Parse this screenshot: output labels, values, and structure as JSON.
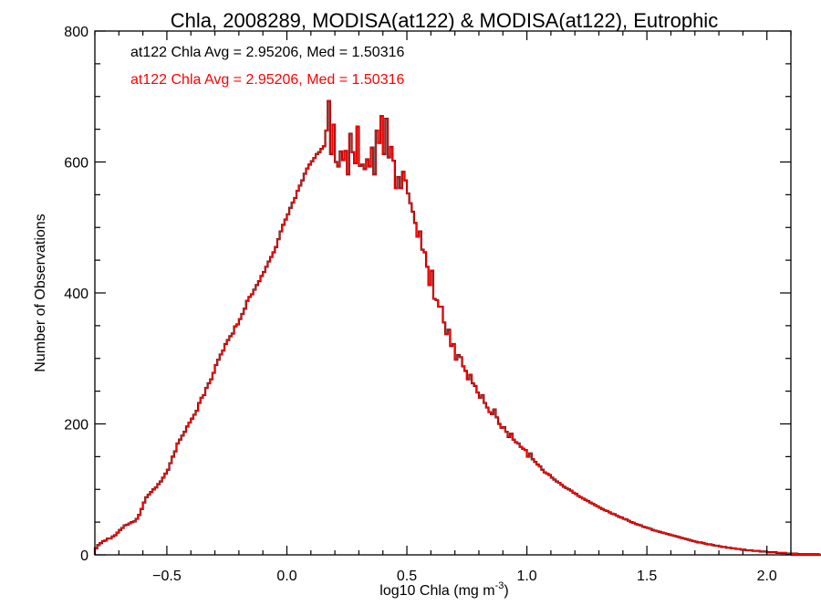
{
  "chart_data": {
    "type": "histogram",
    "title": "Chla, 2008289, MODISA(at122) & MODISA(at122), Eutrophic",
    "xlabel_main": "log10 Chla (mg m",
    "xlabel_sup": "-3",
    "xlabel_end": ")",
    "ylabel": "Number of Observations",
    "xlim": [
      -0.8,
      2.1
    ],
    "ylim": [
      0,
      800
    ],
    "x_ticks": [
      -0.5,
      0.0,
      0.5,
      1.0,
      1.5,
      2.0
    ],
    "x_tick_labels": [
      "−0.5",
      "0.0",
      "0.5",
      "1.0",
      "1.5",
      "2.0"
    ],
    "y_ticks": [
      0,
      200,
      400,
      600,
      800
    ],
    "y_tick_labels": [
      "0",
      "200",
      "400",
      "600",
      "800"
    ],
    "x_minor_step": 0.1,
    "y_minor_step": 50,
    "bin_width": 0.01,
    "annotations": [
      {
        "text": "at122 Chla Avg = 2.95206, Med = 1.50316",
        "color": "#000000"
      },
      {
        "text": "at122 Chla Avg = 2.95206, Med = 1.50316",
        "color": "#ff0000"
      }
    ],
    "series": [
      {
        "color": "#000000",
        "width": 2.2
      },
      {
        "color": "#ff0000",
        "width": 1.6
      }
    ],
    "x_start": -0.8,
    "values": [
      10,
      15,
      18,
      21,
      22,
      25,
      25,
      28,
      30,
      34,
      38,
      41,
      45,
      46,
      48,
      50,
      51,
      55,
      61,
      70,
      80,
      88,
      92,
      96,
      100,
      103,
      108,
      112,
      118,
      124,
      130,
      140,
      150,
      158,
      170,
      176,
      182,
      188,
      196,
      202,
      208,
      214,
      220,
      232,
      240,
      244,
      255,
      262,
      268,
      278,
      290,
      298,
      306,
      312,
      322,
      328,
      334,
      338,
      349,
      352,
      360,
      368,
      376,
      388,
      394,
      398,
      405,
      412,
      418,
      426,
      432,
      440,
      448,
      455,
      462,
      470,
      482,
      494,
      504,
      512,
      520,
      530,
      538,
      545,
      556,
      564,
      572,
      582,
      590,
      596,
      601,
      606,
      612,
      615,
      620,
      624,
      648,
      693,
      612,
      657,
      600,
      593,
      616,
      603,
      617,
      581,
      643,
      615,
      598,
      654,
      594,
      596,
      589,
      604,
      593,
      622,
      581,
      648,
      629,
      670,
      612,
      666,
      607,
      623,
      602,
      560,
      577,
      560,
      585,
      572,
      552,
      537,
      524,
      507,
      486,
      494,
      466,
      462,
      440,
      412,
      434,
      391,
      389,
      379,
      379,
      355,
      337,
      344,
      319,
      322,
      298,
      305,
      302,
      288,
      281,
      268,
      275,
      262,
      258,
      248,
      240,
      244,
      232,
      225,
      218,
      215,
      222,
      210,
      200,
      194,
      195,
      188,
      180,
      185,
      176,
      172,
      170,
      165,
      162,
      160,
      150,
      155,
      146,
      142,
      138,
      135,
      130,
      126,
      124,
      122,
      118,
      115,
      112,
      110,
      107,
      104,
      102,
      100,
      98,
      95,
      93,
      90,
      88,
      86,
      84,
      82,
      80,
      78,
      76,
      74,
      72,
      70,
      68,
      67,
      65,
      63,
      62,
      60,
      58,
      57,
      55,
      54,
      52,
      50,
      49,
      47,
      46,
      45,
      43,
      42,
      41,
      40,
      38,
      37,
      36,
      35,
      34,
      33,
      32,
      31,
      30,
      29,
      28,
      27,
      26,
      25,
      24,
      23,
      22,
      21,
      20,
      19,
      19,
      18,
      17,
      16,
      16,
      15,
      14,
      14,
      13,
      12,
      12,
      11,
      11,
      10,
      10,
      9,
      9,
      8,
      8,
      7,
      7,
      7,
      6,
      6,
      6,
      5,
      5,
      5,
      4,
      4,
      4,
      4,
      3,
      3,
      3,
      3,
      2,
      2,
      2,
      2,
      2,
      2,
      1,
      1,
      1,
      1,
      1,
      1,
      1,
      1,
      1,
      0,
      0,
      0,
      0,
      0,
      0,
      0,
      0,
      0,
      0,
      0,
      0,
      0,
      0,
      0,
      0,
      0,
      0,
      0,
      0
    ]
  }
}
